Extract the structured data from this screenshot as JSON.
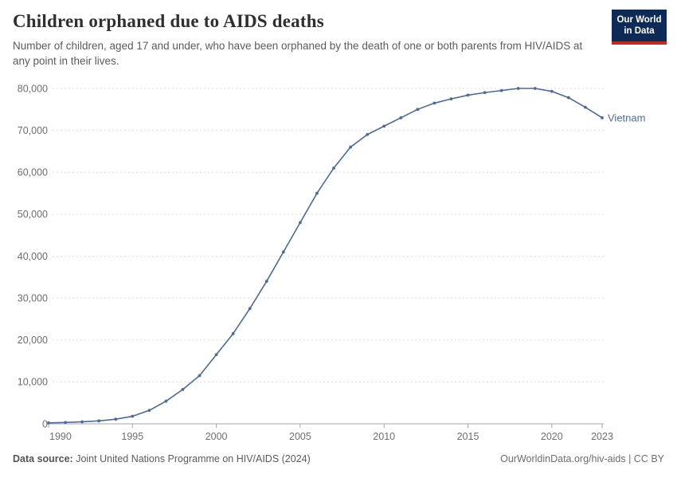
{
  "header": {
    "title": "Children orphaned due to AIDS deaths",
    "subtitle": "Number of children, aged 17 and under, who have been orphaned by the death of one or both parents from HIV/AIDS at any point in their lives.",
    "logo_line1": "Our World",
    "logo_line2": "in Data"
  },
  "colors": {
    "line": "#4C6A9C",
    "logo_bg": "#0E2A56",
    "logo_stripe": "#CE261F",
    "gridline": "#dcdcdc",
    "axis": "#a5a5a5",
    "tick_label": "#6e6e6e"
  },
  "chart_data": {
    "type": "line",
    "title": "Children orphaned due to AIDS deaths",
    "xlabel": "",
    "ylabel": "",
    "xlim": [
      1990,
      2023
    ],
    "ylim": [
      0,
      80000
    ],
    "grid": "horizontal-dashed",
    "legend_position": "end-of-line-label",
    "x_ticks": {
      "values": [
        1990,
        1995,
        2000,
        2005,
        2010,
        2015,
        2020,
        2023
      ],
      "labels": [
        "1990",
        "1995",
        "2000",
        "2005",
        "2010",
        "2015",
        "2020",
        "2023"
      ]
    },
    "y_ticks": {
      "values": [
        0,
        10000,
        20000,
        30000,
        40000,
        50000,
        60000,
        70000,
        80000
      ],
      "labels": [
        "0",
        "10,000",
        "20,000",
        "30,000",
        "40,000",
        "50,000",
        "60,000",
        "70,000",
        "80,000"
      ]
    },
    "series": [
      {
        "name": "Vietnam",
        "color": "#4C6A9C",
        "x": [
          1990,
          1991,
          1992,
          1993,
          1994,
          1995,
          1996,
          1997,
          1998,
          1999,
          2000,
          2001,
          2002,
          2003,
          2004,
          2005,
          2006,
          2007,
          2008,
          2009,
          2010,
          2011,
          2012,
          2013,
          2014,
          2015,
          2016,
          2017,
          2018,
          2019,
          2020,
          2021,
          2022,
          2023
        ],
        "values": [
          220,
          330,
          480,
          700,
          1100,
          1800,
          3200,
          5400,
          8200,
          11500,
          16500,
          21500,
          27500,
          34000,
          41000,
          48000,
          55000,
          61000,
          66000,
          69000,
          71000,
          73000,
          75000,
          76500,
          77500,
          78400,
          79000,
          79500,
          80000,
          80000,
          79300,
          77800,
          75500,
          73000
        ]
      }
    ]
  },
  "footer": {
    "source_label": "Data source:",
    "source_value": " Joint United Nations Programme on HIV/AIDS (2024)",
    "credit": "OurWorldinData.org/hiv-aids | CC BY"
  }
}
